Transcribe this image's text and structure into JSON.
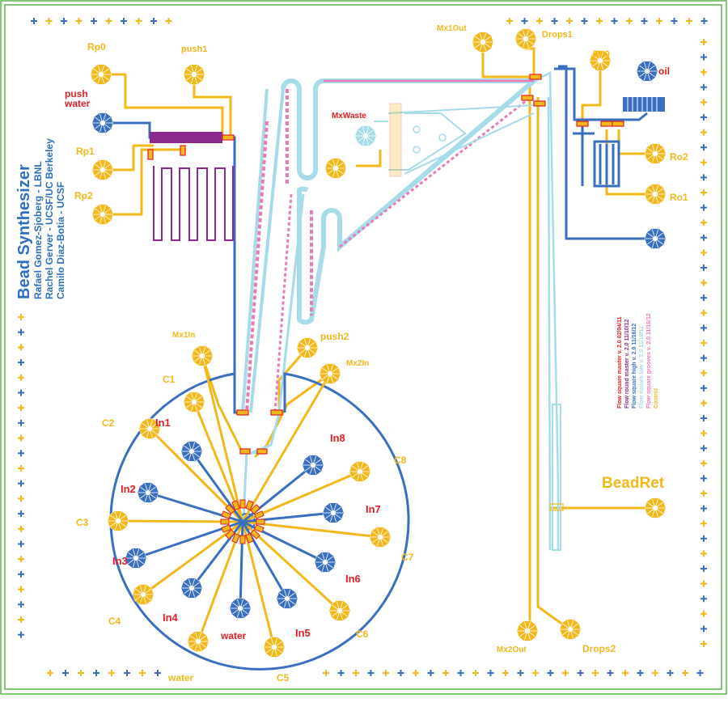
{
  "title": {
    "main": "Bead Synthesizer",
    "authors": [
      "Rafael Gomez-Sjoberg - LBNL",
      "Rachel Gerver - UCSF/UC Berkeley",
      "Camilo Diaz-Botia - UCSF"
    ]
  },
  "colors": {
    "control": "#f2b81a",
    "flow": "#3a6fbf",
    "pink": "#e97ab9",
    "cyan": "#a6dbe8",
    "purple": "#8a2a8f",
    "red": "#e01f26",
    "border": "#56b848"
  },
  "ports": {
    "yellow": [
      {
        "id": "rp0",
        "label": "Rp0"
      },
      {
        "id": "push1",
        "label": "push1"
      },
      {
        "id": "rp1",
        "label": "Rp1"
      },
      {
        "id": "rp2",
        "label": "Rp2"
      },
      {
        "id": "mx1out",
        "label": "Mx1Out"
      },
      {
        "id": "drops1",
        "label": "Drops1"
      },
      {
        "id": "ro0",
        "label": "Ro0"
      },
      {
        "id": "ro2",
        "label": "Ro2"
      },
      {
        "id": "ro1",
        "label": "Ro1"
      },
      {
        "id": "mx1in",
        "label": "Mx1In"
      },
      {
        "id": "push2",
        "label": "push2"
      },
      {
        "id": "mx2in",
        "label": "Mx2In"
      },
      {
        "id": "beadret",
        "label": "BeadRet"
      },
      {
        "id": "mx2out",
        "label": "Mx2Out"
      },
      {
        "id": "drops2",
        "label": "Drops2"
      },
      {
        "id": "c1",
        "label": "C1"
      },
      {
        "id": "c2",
        "label": "C2"
      },
      {
        "id": "c3",
        "label": "C3"
      },
      {
        "id": "c4",
        "label": "C4"
      },
      {
        "id": "c5",
        "label": "C5"
      },
      {
        "id": "c6",
        "label": "C6"
      },
      {
        "id": "c7",
        "label": "C7"
      },
      {
        "id": "c8",
        "label": "C8"
      }
    ],
    "red": [
      {
        "id": "pushwater",
        "label": "push water"
      },
      {
        "id": "oil",
        "label": "oil"
      },
      {
        "id": "mxwaste",
        "label": "MxWaste"
      },
      {
        "id": "in1",
        "label": "In1"
      },
      {
        "id": "in2",
        "label": "In2"
      },
      {
        "id": "in3",
        "label": "In3"
      },
      {
        "id": "in4",
        "label": "In4"
      },
      {
        "id": "in5",
        "label": "In5"
      },
      {
        "id": "in6",
        "label": "In6"
      },
      {
        "id": "in7",
        "label": "In7"
      },
      {
        "id": "in8",
        "label": "In8"
      },
      {
        "id": "water",
        "label": "water"
      }
    ]
  },
  "bottom_water_label": "water",
  "legend": [
    {
      "label": "Flow square master v. 2.0 02/04/11",
      "color": "#e01f26"
    },
    {
      "label": "Flow round master v. 2.0 11/10/12",
      "color": "#8a2a8f"
    },
    {
      "label": "Flow square high v. 2.0 11/16/12",
      "color": "#3a6fbf"
    },
    {
      "label": "Flow square low v. 2.0 11/16/12",
      "color": "#a6dbe8"
    },
    {
      "label": "Flow square grooves v. 2.0 11/16/12",
      "color": "#e97ab9"
    },
    {
      "label": "Control",
      "color": "#f2b81a"
    }
  ]
}
